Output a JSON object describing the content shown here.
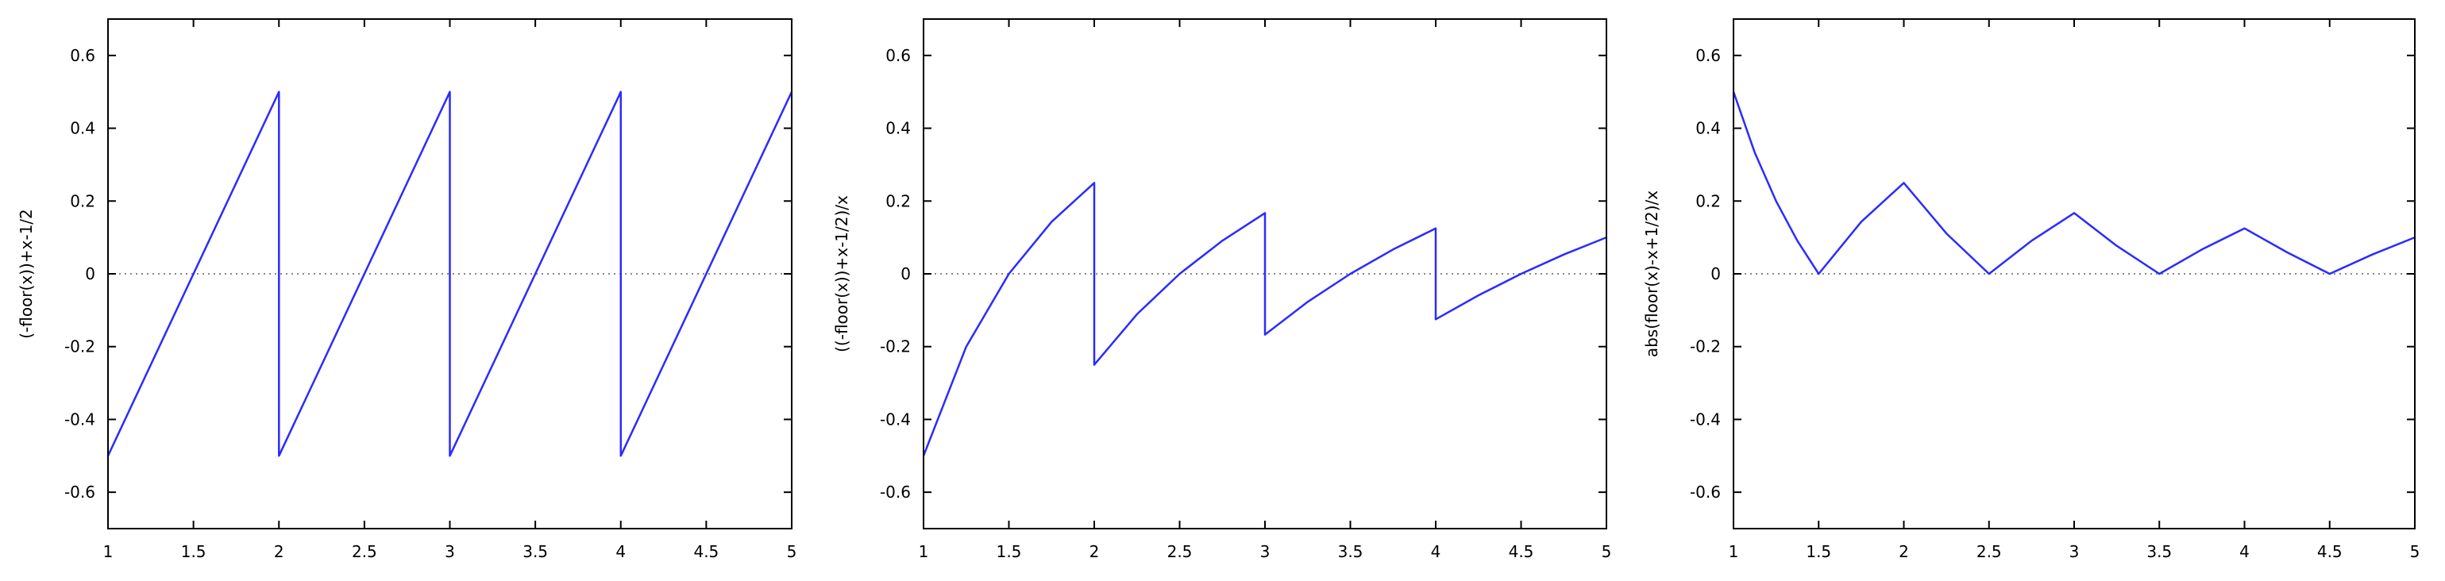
{
  "chart_data": [
    {
      "type": "line",
      "ylabel": "(-floor(x))+x-1/2",
      "xlim": [
        1,
        5
      ],
      "ylim": [
        -0.7,
        0.7
      ],
      "xticks": [
        "1",
        "1.5",
        "2",
        "2.5",
        "3",
        "3.5",
        "4",
        "4.5",
        "5"
      ],
      "yticks": [
        "-0.6",
        "-0.4",
        "-0.2",
        "0",
        "0.2",
        "0.4",
        "0.6"
      ],
      "zero_line": true,
      "series": [
        {
          "color": "#2b2bff",
          "x": [
            1,
            2,
            2,
            3,
            3,
            4,
            4,
            5
          ],
          "y": [
            -0.5,
            0.5,
            -0.5,
            0.5,
            -0.5,
            0.5,
            -0.5,
            0.5
          ]
        }
      ]
    },
    {
      "type": "line",
      "ylabel": "((-floor(x))+x-1/2)/x",
      "xlim": [
        1,
        5
      ],
      "ylim": [
        -0.7,
        0.7
      ],
      "xticks": [
        "1",
        "1.5",
        "2",
        "2.5",
        "3",
        "3.5",
        "4",
        "4.5",
        "5"
      ],
      "yticks": [
        "-0.6",
        "-0.4",
        "-0.2",
        "0",
        "0.2",
        "0.4",
        "0.6"
      ],
      "zero_line": true,
      "series": [
        {
          "color": "#2b2bff",
          "x": [
            1,
            1.25,
            1.5,
            1.75,
            2,
            2,
            2.25,
            2.5,
            2.75,
            3,
            3,
            3.25,
            3.5,
            3.75,
            4,
            4,
            4.25,
            4.5,
            4.75,
            5
          ],
          "y": [
            -0.5,
            -0.2,
            0,
            0.143,
            0.25,
            -0.25,
            -0.111,
            0,
            0.091,
            0.167,
            -0.167,
            -0.077,
            0,
            0.067,
            0.125,
            -0.125,
            -0.059,
            0,
            0.053,
            0.1
          ]
        }
      ]
    },
    {
      "type": "line",
      "ylabel": "abs(floor(x)-x+1/2)/x",
      "xlim": [
        1,
        5
      ],
      "ylim": [
        -0.7,
        0.7
      ],
      "xticks": [
        "1",
        "1.5",
        "2",
        "2.5",
        "3",
        "3.5",
        "4",
        "4.5",
        "5"
      ],
      "yticks": [
        "-0.6",
        "-0.4",
        "-0.2",
        "0",
        "0.2",
        "0.4",
        "0.6"
      ],
      "zero_line": true,
      "series": [
        {
          "color": "#2b2bff",
          "x": [
            1,
            1.125,
            1.25,
            1.375,
            1.5,
            1.75,
            2,
            2.25,
            2.5,
            2.75,
            3,
            3.25,
            3.5,
            3.75,
            4,
            4.25,
            4.5,
            4.75,
            5
          ],
          "y": [
            0.5,
            0.333,
            0.2,
            0.091,
            0,
            0.143,
            0.25,
            0.111,
            0,
            0.091,
            0.167,
            0.077,
            0,
            0.067,
            0.125,
            0.059,
            0,
            0.053,
            0.1
          ]
        }
      ]
    }
  ]
}
